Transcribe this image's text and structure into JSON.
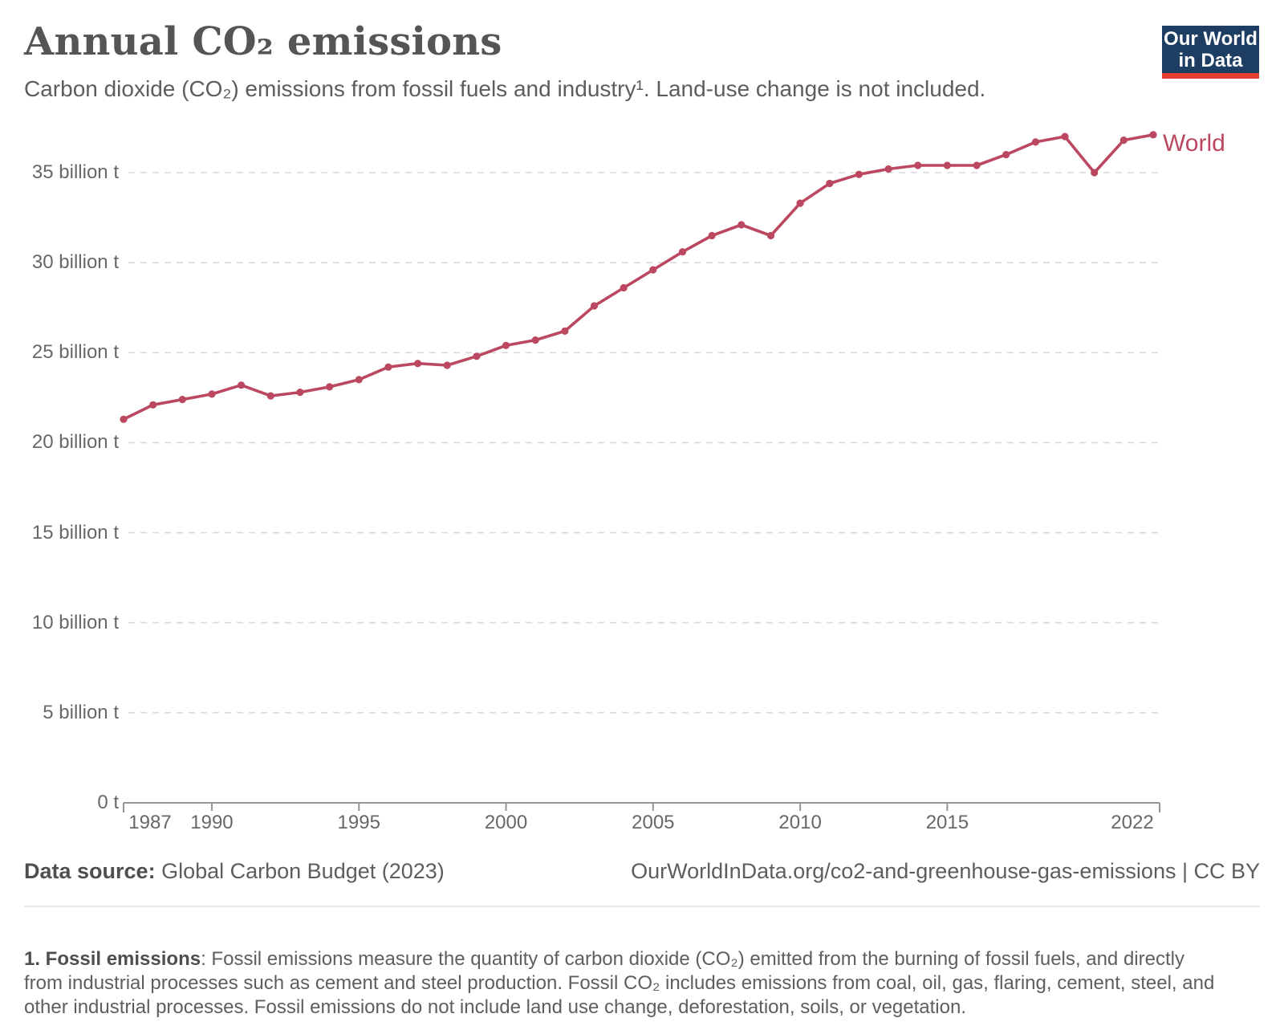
{
  "header": {
    "title": "Annual CO₂ emissions",
    "subtitle": "Carbon dioxide (CO₂) emissions from fossil fuels and industry¹. Land-use change is not included.",
    "logo": {
      "line1": "Our World",
      "line2": "in Data"
    }
  },
  "chart_data": {
    "type": "line",
    "title": "Annual CO₂ emissions",
    "series_label": "World",
    "x": [
      1987,
      1988,
      1989,
      1990,
      1991,
      1992,
      1993,
      1994,
      1995,
      1996,
      1997,
      1998,
      1999,
      2000,
      2001,
      2002,
      2003,
      2004,
      2005,
      2006,
      2007,
      2008,
      2009,
      2010,
      2011,
      2012,
      2013,
      2014,
      2015,
      2016,
      2017,
      2018,
      2019,
      2020,
      2021,
      2022
    ],
    "series": [
      {
        "name": "World",
        "values": [
          21.3,
          22.1,
          22.4,
          22.7,
          23.2,
          22.6,
          22.8,
          23.1,
          23.5,
          24.2,
          24.4,
          24.3,
          24.8,
          25.4,
          25.7,
          26.2,
          27.6,
          28.6,
          29.6,
          30.6,
          31.5,
          32.1,
          31.5,
          33.3,
          34.4,
          34.9,
          35.2,
          35.4,
          35.4,
          35.4,
          36.0,
          36.7,
          37.0,
          35.0,
          36.8,
          37.1
        ]
      }
    ],
    "unit": "billion t",
    "xlim": [
      1987,
      2022
    ],
    "ylim": [
      0,
      37.5
    ],
    "grid": true,
    "legend_position": "end-of-line",
    "y_ticks": [
      {
        "value": 0,
        "label": "0 t"
      },
      {
        "value": 5,
        "label": "5 billion t"
      },
      {
        "value": 10,
        "label": "10 billion t"
      },
      {
        "value": 15,
        "label": "15 billion t"
      },
      {
        "value": 20,
        "label": "20 billion t"
      },
      {
        "value": 25,
        "label": "25 billion t"
      },
      {
        "value": 30,
        "label": "30 billion t"
      },
      {
        "value": 35,
        "label": "35 billion t"
      }
    ],
    "x_ticks": [
      {
        "value": 1987,
        "label": "1987"
      },
      {
        "value": 1990,
        "label": "1990"
      },
      {
        "value": 1995,
        "label": "1995"
      },
      {
        "value": 2000,
        "label": "2000"
      },
      {
        "value": 2005,
        "label": "2005"
      },
      {
        "value": 2010,
        "label": "2010"
      },
      {
        "value": 2015,
        "label": "2015"
      },
      {
        "value": 2022,
        "label": "2022"
      }
    ],
    "colors": {
      "line": "#bb4860",
      "logo_navy": "#1d3d63",
      "logo_red": "#e63e32"
    }
  },
  "footer": {
    "source_label": "Data source:",
    "source_value": " Global Carbon Budget (2023)",
    "attribution": "OurWorldInData.org/co2-and-greenhouse-gas-emissions | CC BY",
    "note_label": "1. Fossil emissions",
    "note_text": ": Fossil emissions measure the quantity of carbon dioxide (CO₂) emitted from the burning of fossil fuels, and directly from industrial processes such as cement and steel production. Fossil CO₂ includes emissions from coal, oil, gas, flaring, cement, steel, and other industrial processes. Fossil emissions do not include land use change, deforestation, soils, or vegetation."
  }
}
